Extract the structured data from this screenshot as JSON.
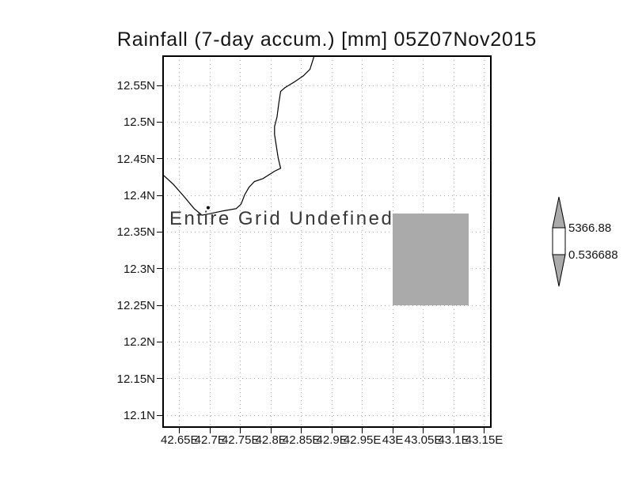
{
  "title": "Rainfall (7-day accum.) [mm] 05Z07Nov2015",
  "plot": {
    "message": "Entire Grid Undefined"
  },
  "colorbar": {
    "max_label": "5366.88",
    "min_label": "0.536688",
    "arrow_fill": "#aaaaaa",
    "box_fill": "#ffffff",
    "outline": "#000000"
  },
  "colors": {
    "undefined_region": "#aaaaaa",
    "gridline": "#a6a6a6",
    "coastline": "#000000",
    "frame": "#000000"
  },
  "chart_data": {
    "type": "heatmap",
    "title": "Rainfall (7-day accum.) [mm] 05Z07Nov2015",
    "xlabel": "",
    "ylabel": "",
    "status_annotation": "Entire Grid Undefined",
    "grid": true,
    "x_ticks": [
      "42.65E",
      "42.7E",
      "42.75E",
      "42.8E",
      "42.85E",
      "42.9E",
      "42.95E",
      "43E",
      "43.05E",
      "43.1E",
      "43.15E"
    ],
    "y_ticks": [
      "12.55N",
      "12.5N",
      "12.45N",
      "12.4N",
      "12.35N",
      "12.3N",
      "12.25N",
      "12.2N",
      "12.15N",
      "12.1N"
    ],
    "xlim": [
      42.623,
      43.161
    ],
    "ylim": [
      12.084,
      12.59
    ],
    "colorbar_range": [
      0.536688,
      5366.88
    ],
    "undefined_region": {
      "lon": [
        43.0,
        43.125
      ],
      "lat": [
        12.25,
        12.375
      ]
    },
    "coastline": [
      [
        42.871,
        12.59
      ],
      [
        42.864,
        12.572
      ],
      [
        42.853,
        12.563
      ],
      [
        42.839,
        12.555
      ],
      [
        42.823,
        12.547
      ],
      [
        42.816,
        12.542
      ],
      [
        42.813,
        12.526
      ],
      [
        42.81,
        12.507
      ],
      [
        42.806,
        12.494
      ],
      [
        42.806,
        12.483
      ],
      [
        42.809,
        12.467
      ],
      [
        42.812,
        12.451
      ],
      [
        42.816,
        12.437
      ],
      [
        42.806,
        12.433
      ],
      [
        42.787,
        12.423
      ],
      [
        42.773,
        12.419
      ],
      [
        42.764,
        12.411
      ],
      [
        42.757,
        12.401
      ],
      [
        42.751,
        12.388
      ],
      [
        42.743,
        12.382
      ],
      [
        42.722,
        12.379
      ],
      [
        42.699,
        12.375
      ],
      [
        42.687,
        12.373
      ],
      [
        42.674,
        12.382
      ],
      [
        42.658,
        12.398
      ],
      [
        42.64,
        12.415
      ],
      [
        42.623,
        12.428
      ]
    ],
    "islands": [
      [
        42.697,
        12.379
      ]
    ]
  }
}
